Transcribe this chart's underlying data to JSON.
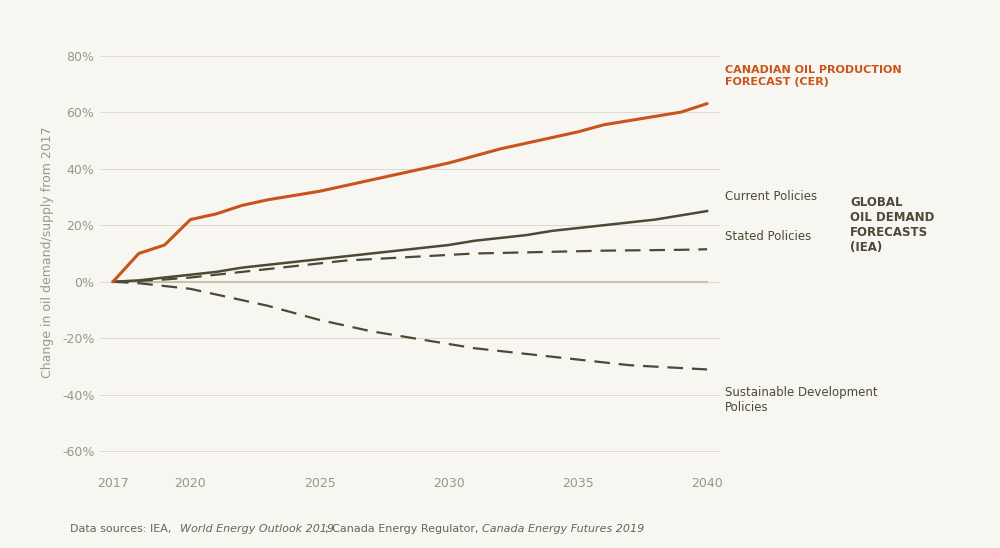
{
  "background_color": "#f7f6f1",
  "plot_bg_color": "#f7f6f1",
  "ylabel": "Change in oil demand/supply from 2017",
  "years": [
    2017,
    2018,
    2019,
    2020,
    2021,
    2022,
    2023,
    2024,
    2025,
    2026,
    2027,
    2028,
    2029,
    2030,
    2031,
    2032,
    2033,
    2034,
    2035,
    2036,
    2037,
    2038,
    2039,
    2040
  ],
  "canadian_production": [
    0,
    10,
    13,
    22,
    24,
    27,
    29,
    30.5,
    32,
    34,
    36,
    38,
    40,
    42,
    44.5,
    47,
    49,
    51,
    53,
    55.5,
    57,
    58.5,
    60,
    63
  ],
  "current_policies": [
    0,
    0.5,
    1.5,
    2.5,
    3.5,
    5,
    6,
    7,
    8,
    9,
    10,
    11,
    12,
    13,
    14.5,
    15.5,
    16.5,
    18,
    19,
    20,
    21,
    22,
    23.5,
    25
  ],
  "stated_policies": [
    0,
    0.3,
    0.8,
    1.5,
    2.5,
    3.5,
    4.5,
    5.5,
    6.5,
    7.5,
    8.0,
    8.5,
    9.0,
    9.5,
    10.0,
    10.2,
    10.4,
    10.6,
    10.8,
    11.0,
    11.1,
    11.2,
    11.3,
    11.5
  ],
  "near_zero": [
    0,
    0,
    0,
    0,
    0,
    0,
    0,
    0,
    0,
    0,
    0,
    0,
    0,
    0,
    0,
    0,
    0,
    0,
    0,
    0,
    0,
    0,
    0,
    0
  ],
  "sustainable_dev": [
    0,
    -0.5,
    -1.5,
    -2.5,
    -4.5,
    -6.5,
    -8.5,
    -11,
    -13.5,
    -15.5,
    -17.5,
    -19,
    -20.5,
    -22,
    -23.5,
    -24.5,
    -25.5,
    -26.5,
    -27.5,
    -28.5,
    -29.5,
    -30,
    -30.5,
    -31
  ],
  "canadian_color": "#c9541a",
  "dark_olive": "#4a4a35",
  "near_zero_color": "#c8c4aa",
  "zero_line_color": "#c8c4aa",
  "grid_color": "#dedad0",
  "yticks": [
    -60,
    -40,
    -20,
    0,
    20,
    40,
    60,
    80
  ],
  "xticks": [
    2017,
    2020,
    2025,
    2030,
    2035,
    2040
  ],
  "ylim": [
    -67,
    88
  ],
  "xlim": [
    2016.5,
    2040.5
  ],
  "tick_color": "#999988",
  "label_color": "#555544"
}
